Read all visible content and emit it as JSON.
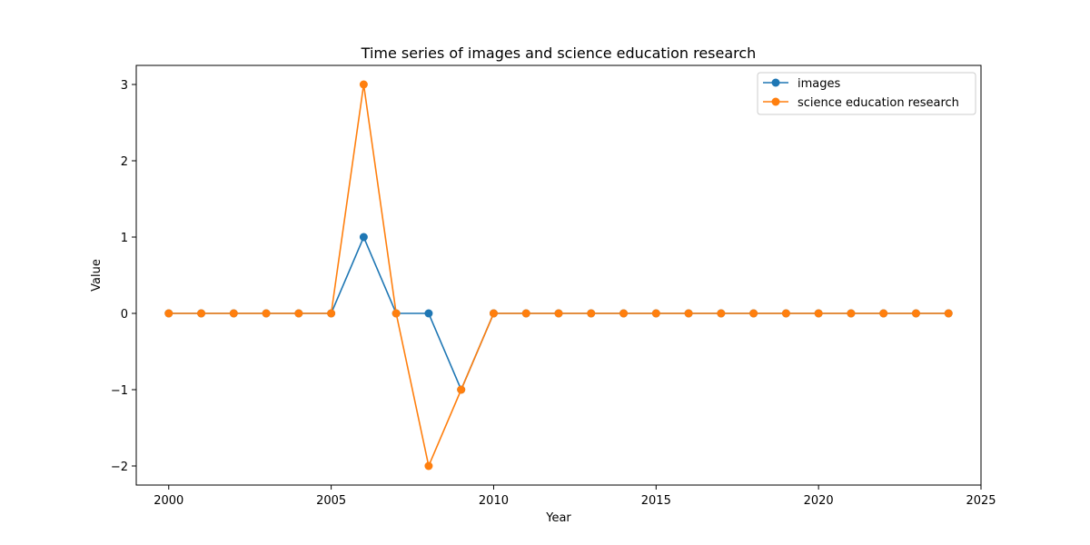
{
  "chart_data": {
    "type": "line",
    "title": "Time series of images and science education research",
    "xlabel": "Year",
    "ylabel": "Value",
    "xlim": [
      1999,
      2025
    ],
    "ylim": [
      -2.25,
      3.25
    ],
    "x_ticks": [
      2000,
      2005,
      2010,
      2015,
      2020,
      2025
    ],
    "y_ticks": [
      -2,
      -1,
      0,
      1,
      2,
      3
    ],
    "x_tick_labels": [
      "2000",
      "2005",
      "2010",
      "2015",
      "2020",
      "2025"
    ],
    "y_tick_labels": [
      "−2",
      "−1",
      "0",
      "1",
      "2",
      "3"
    ],
    "x": [
      2000,
      2001,
      2002,
      2003,
      2004,
      2005,
      2006,
      2007,
      2008,
      2009,
      2010,
      2011,
      2012,
      2013,
      2014,
      2015,
      2016,
      2017,
      2018,
      2019,
      2020,
      2021,
      2022,
      2023,
      2024
    ],
    "series": [
      {
        "name": "images",
        "color": "#1f77b4",
        "values": [
          0,
          0,
          0,
          0,
          0,
          0,
          1,
          0,
          0,
          -1,
          0,
          0,
          0,
          0,
          0,
          0,
          0,
          0,
          0,
          0,
          0,
          0,
          0,
          0,
          0
        ]
      },
      {
        "name": "science education research",
        "color": "#ff7f0e",
        "values": [
          0,
          0,
          0,
          0,
          0,
          0,
          3,
          0,
          -2,
          -1,
          0,
          0,
          0,
          0,
          0,
          0,
          0,
          0,
          0,
          0,
          0,
          0,
          0,
          0,
          0
        ]
      }
    ],
    "grid": false,
    "legend_position": "top-right"
  }
}
